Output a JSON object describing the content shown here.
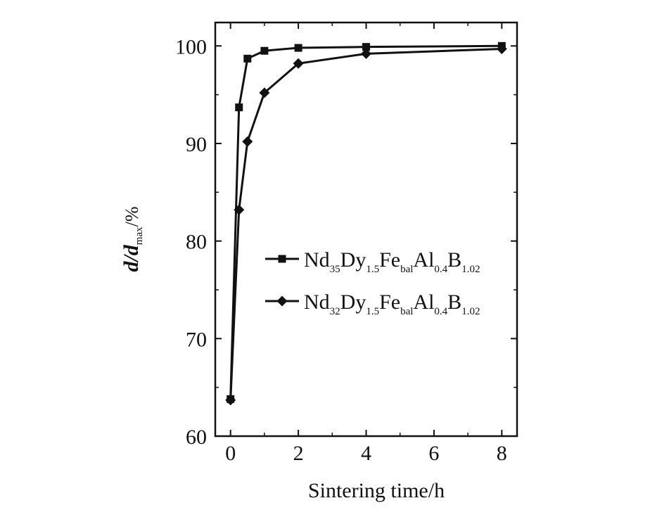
{
  "chart_data": {
    "type": "line",
    "xlabel": "Sintering time/h",
    "ylabel": {
      "main": "d/d",
      "sub": "max",
      "unit": "/%"
    },
    "x_ticks": [
      "0",
      "2",
      "4",
      "6",
      "8"
    ],
    "y_ticks": [
      "60",
      "70",
      "80",
      "90",
      "100"
    ],
    "xlim": [
      -0.45,
      8.45
    ],
    "ylim": [
      60,
      102.4
    ],
    "legend_placement": "center-right",
    "grid": false,
    "series": [
      {
        "marker": "square",
        "label_parts": [
          [
            "Nd",
            ""
          ],
          [
            "35",
            "sub"
          ],
          [
            "Dy",
            ""
          ],
          [
            "1.5",
            "sub"
          ],
          [
            "Fe",
            ""
          ],
          [
            "bal",
            "sub"
          ],
          [
            "Al",
            ""
          ],
          [
            "0.4",
            "sub"
          ],
          [
            "B",
            ""
          ],
          [
            "1.02",
            "sub"
          ]
        ],
        "x": [
          0,
          0.25,
          0.5,
          1,
          2,
          4,
          8
        ],
        "y": [
          63.8,
          93.7,
          98.7,
          99.5,
          99.8,
          99.9,
          100.0
        ]
      },
      {
        "marker": "diamond",
        "label_parts": [
          [
            "Nd",
            ""
          ],
          [
            "32",
            "sub"
          ],
          [
            "Dy",
            ""
          ],
          [
            "1.5",
            "sub"
          ],
          [
            "Fe",
            ""
          ],
          [
            "bal",
            "sub"
          ],
          [
            "Al",
            ""
          ],
          [
            "0.4",
            "sub"
          ],
          [
            "B",
            ""
          ],
          [
            "1.02",
            "sub"
          ]
        ],
        "x": [
          0,
          0.25,
          0.5,
          1,
          2,
          4,
          8
        ],
        "y": [
          63.7,
          83.2,
          90.2,
          95.2,
          98.2,
          99.2,
          99.7
        ]
      }
    ]
  }
}
